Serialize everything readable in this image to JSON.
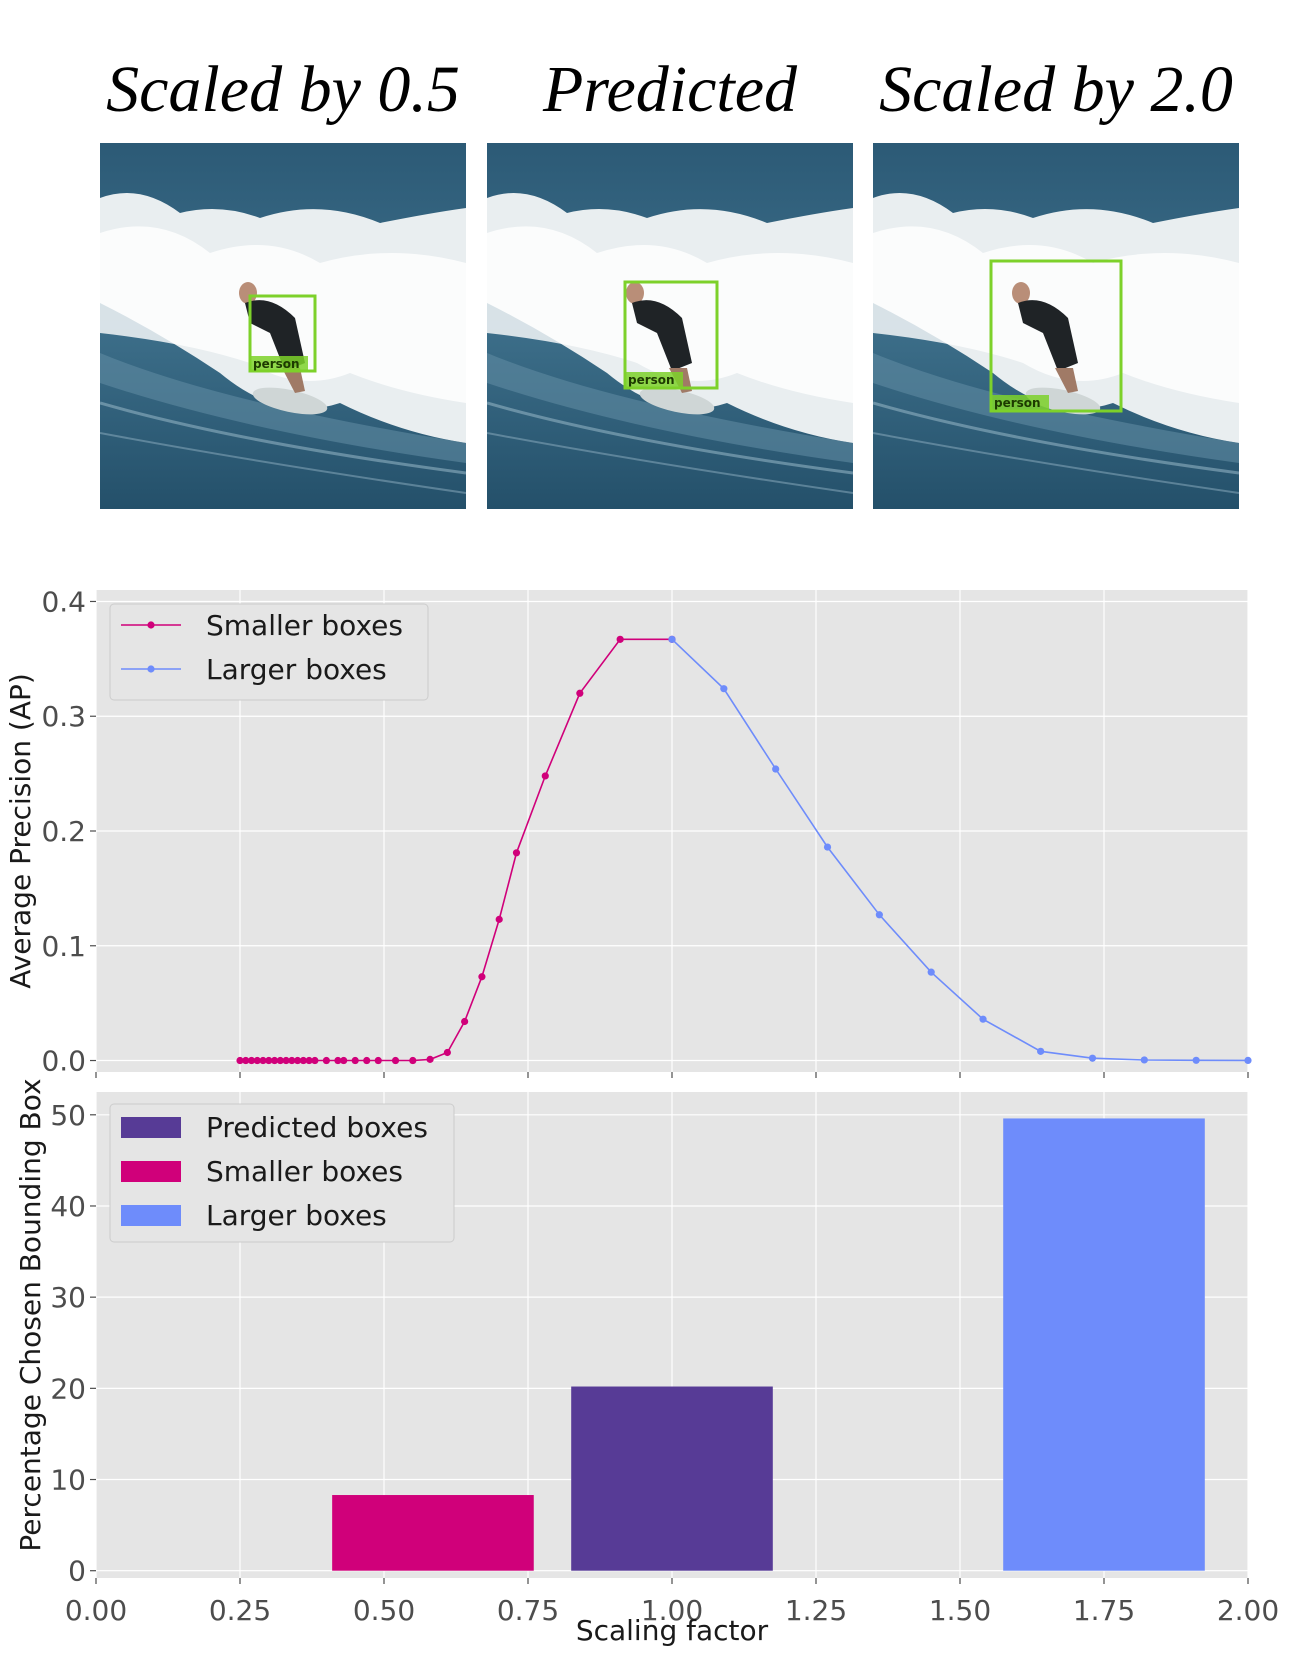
{
  "panels": [
    {
      "title": "Scaled by 0.5",
      "box_label": "person"
    },
    {
      "title": "Predicted",
      "box_label": "person"
    },
    {
      "title": "Scaled by 2.0",
      "box_label": "person"
    }
  ],
  "colors": {
    "smaller": "#d0007a",
    "larger": "#6e8cfb",
    "predicted": "#573b96",
    "plot_bg": "#e5e5e5",
    "grid": "#ffffff",
    "box": "#7dd12a"
  },
  "chart_data": [
    {
      "type": "line",
      "ylabel": "Average Precision (AP)",
      "xlim": [
        0.0,
        2.0
      ],
      "ylim": [
        -0.01,
        0.41
      ],
      "yticks": [
        "0.0",
        "0.1",
        "0.2",
        "0.3",
        "0.4"
      ],
      "grid": true,
      "legend": "top-left",
      "series": [
        {
          "name": "Smaller boxes",
          "color": "#d0007a",
          "x": [
            0.25,
            0.26,
            0.27,
            0.28,
            0.29,
            0.3,
            0.31,
            0.32,
            0.33,
            0.34,
            0.35,
            0.36,
            0.37,
            0.38,
            0.4,
            0.42,
            0.43,
            0.45,
            0.47,
            0.49,
            0.52,
            0.55,
            0.58,
            0.61,
            0.64,
            0.67,
            0.7,
            0.73,
            0.78,
            0.84,
            0.91,
            1.0
          ],
          "y": [
            0,
            0,
            0,
            0,
            0,
            0,
            0,
            0,
            0,
            0,
            0,
            0,
            0,
            0,
            0,
            0,
            0,
            0,
            0,
            0,
            0,
            0,
            0.001,
            0.007,
            0.034,
            0.073,
            0.123,
            0.181,
            0.248,
            0.32,
            0.367,
            0.367
          ]
        },
        {
          "name": "Larger boxes",
          "color": "#6e8cfb",
          "x": [
            1.0,
            1.09,
            1.18,
            1.27,
            1.36,
            1.45,
            1.54,
            1.64,
            1.73,
            1.82,
            1.91,
            2.0
          ],
          "y": [
            0.367,
            0.324,
            0.254,
            0.186,
            0.127,
            0.077,
            0.036,
            0.008,
            0.002,
            0.0005,
            0.0002,
            0.0001
          ]
        }
      ]
    },
    {
      "type": "bar",
      "xlabel": "Scaling factor",
      "ylabel": "Percentage Chosen Bounding Box",
      "xlim": [
        0.0,
        2.0
      ],
      "ylim": [
        -0.8,
        52.5
      ],
      "xticks": [
        "0.00",
        "0.25",
        "0.50",
        "0.75",
        "1.00",
        "1.25",
        "1.50",
        "1.75",
        "2.00"
      ],
      "yticks": [
        "0",
        "10",
        "20",
        "30",
        "40",
        "50"
      ],
      "grid": true,
      "legend": "top-left",
      "legend_labels": [
        "Predicted boxes",
        "Smaller boxes",
        "Larger boxes"
      ],
      "bars": [
        {
          "name": "Smaller boxes",
          "x_start": 0.41,
          "x_end": 0.76,
          "value": 8.3,
          "color": "#d0007a"
        },
        {
          "name": "Predicted boxes",
          "x_start": 0.825,
          "x_end": 1.175,
          "value": 20.2,
          "color": "#573b96"
        },
        {
          "name": "Larger boxes",
          "x_start": 1.575,
          "x_end": 1.925,
          "value": 49.6,
          "color": "#6e8cfb"
        }
      ]
    }
  ]
}
